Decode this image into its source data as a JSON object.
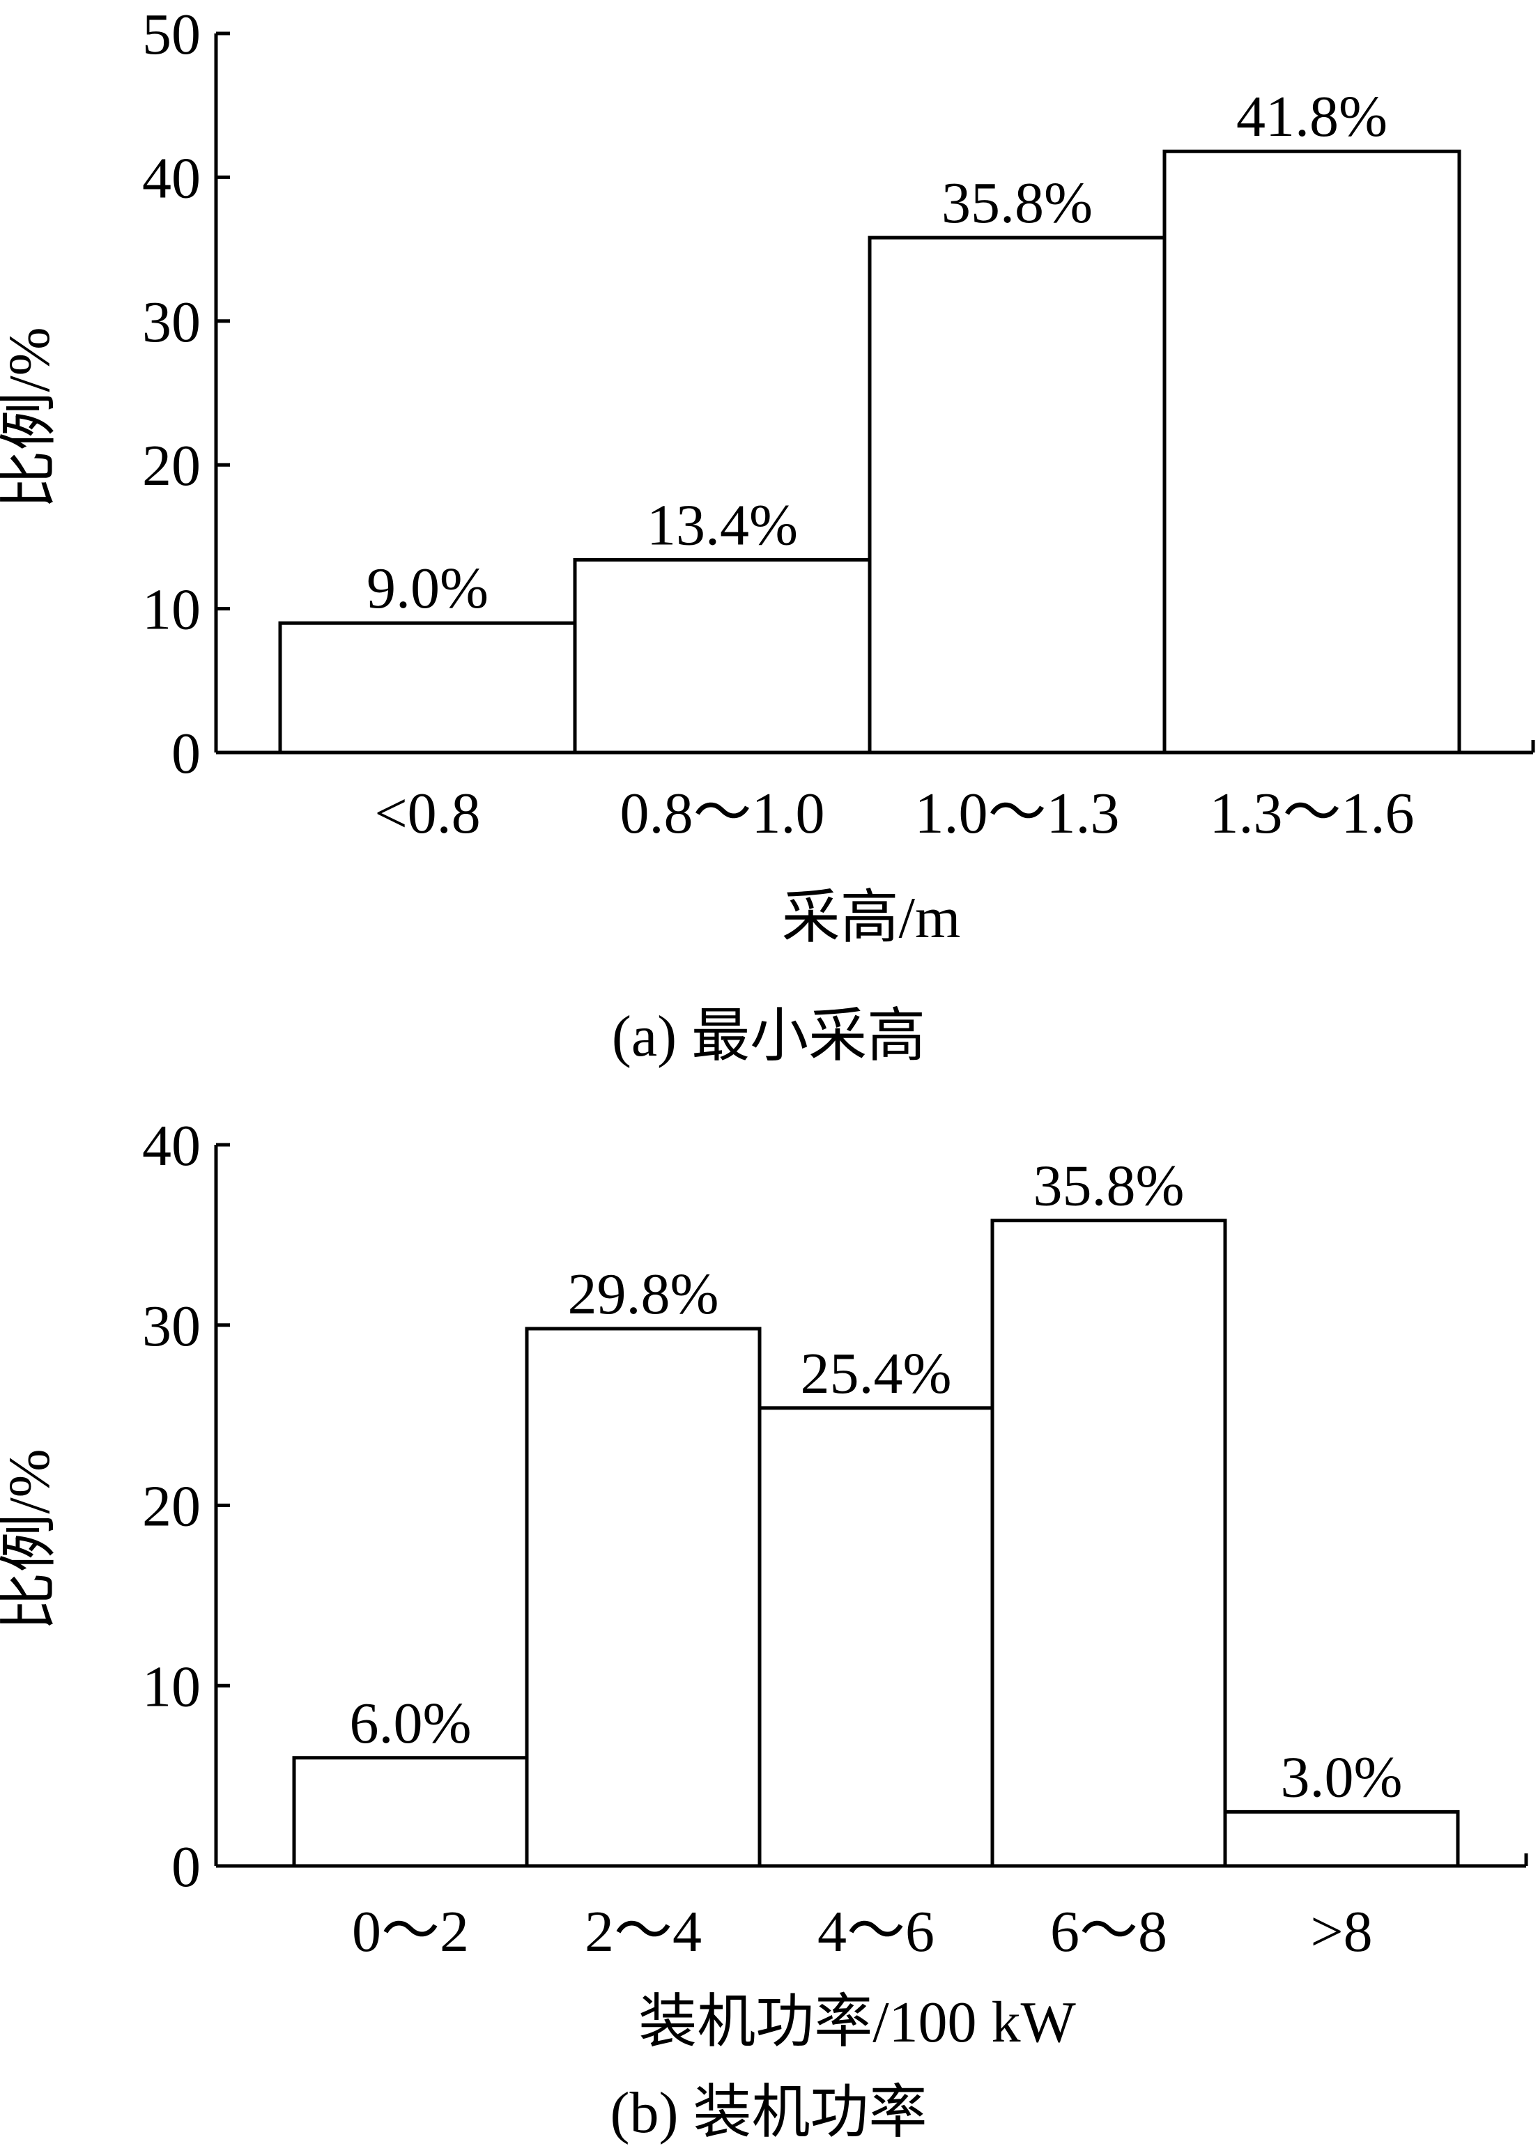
{
  "figure": {
    "captions": [
      "(a) 最小采高",
      "(b) 装机功率"
    ]
  },
  "chart_data": [
    {
      "type": "bar",
      "title": "",
      "xlabel": "采高/m",
      "ylabel": "比例/%",
      "categories": [
        "<0.8",
        "0.8～1.0",
        "1.0～1.3",
        "1.3～1.6"
      ],
      "values": [
        9.0,
        13.4,
        35.8,
        41.8
      ],
      "value_labels": [
        "9.0%",
        "13.4%",
        "35.8%",
        "41.8%"
      ],
      "ylim": [
        0,
        50
      ],
      "yticks": [
        0,
        10,
        20,
        30,
        40,
        50
      ],
      "ytick_labels": [
        "0",
        "10",
        "20",
        "30",
        "40",
        "50"
      ],
      "grid": false,
      "bar_fill": "#ffffff",
      "bar_stroke": "#000000"
    },
    {
      "type": "bar",
      "title": "",
      "xlabel": "装机功率/100 kW",
      "ylabel": "比例/%",
      "categories": [
        "0～2",
        "2～4",
        "4～6",
        "6～8",
        ">8"
      ],
      "values": [
        6.0,
        29.8,
        25.4,
        35.8,
        3.0
      ],
      "value_labels": [
        "6.0%",
        "29.8%",
        "25.4%",
        "35.8%",
        "3.0%"
      ],
      "ylim": [
        0,
        40
      ],
      "yticks": [
        0,
        10,
        20,
        30,
        40
      ],
      "ytick_labels": [
        "0",
        "10",
        "20",
        "30",
        "40"
      ],
      "grid": false,
      "bar_fill": "#ffffff",
      "bar_stroke": "#000000"
    }
  ]
}
